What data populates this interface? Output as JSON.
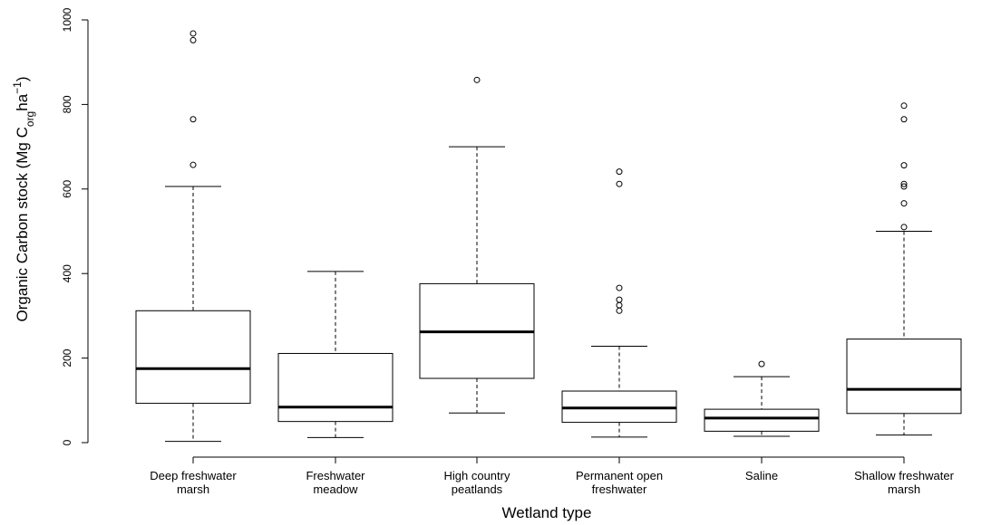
{
  "chart_data": {
    "type": "box",
    "xlabel": "Wetland type",
    "ylabel": {
      "main": "Organic Carbon stock (Mg C",
      "sub": "org",
      "mid": "ha",
      "sup": "−1",
      "end": ")"
    },
    "ylim": [
      0,
      1000
    ],
    "yticks": [
      "0",
      "200",
      "400",
      "600",
      "800",
      "1000"
    ],
    "grid": false,
    "categories": [
      {
        "lines": [
          "Deep freshwater",
          "marsh"
        ]
      },
      {
        "lines": [
          "Freshwater",
          "meadow"
        ]
      },
      {
        "lines": [
          "High country",
          "peatlands"
        ]
      },
      {
        "lines": [
          "Permanent open",
          "freshwater"
        ]
      },
      {
        "lines": [
          "Saline"
        ]
      },
      {
        "lines": [
          "Shallow freshwater",
          "marsh"
        ]
      }
    ],
    "boxes": [
      {
        "whisker_low": 3,
        "q1": 93,
        "median": 175,
        "q3": 312,
        "whisker_high": 606,
        "outliers": [
          657,
          765,
          952,
          968
        ]
      },
      {
        "whisker_low": 12,
        "q1": 50,
        "median": 84,
        "q3": 211,
        "whisker_high": 405,
        "outliers": []
      },
      {
        "whisker_low": 70,
        "q1": 152,
        "median": 262,
        "q3": 376,
        "whisker_high": 700,
        "outliers": [
          858
        ]
      },
      {
        "whisker_low": 13,
        "q1": 48,
        "median": 82,
        "q3": 122,
        "whisker_high": 228,
        "outliers": [
          312,
          325,
          338,
          366,
          612,
          641
        ]
      },
      {
        "whisker_low": 15,
        "q1": 27,
        "median": 58,
        "q3": 79,
        "whisker_high": 156,
        "outliers": [
          186
        ]
      },
      {
        "whisker_low": 18,
        "q1": 69,
        "median": 126,
        "q3": 245,
        "whisker_high": 500,
        "outliers": [
          510,
          566,
          606,
          612,
          656,
          765,
          797
        ]
      }
    ]
  }
}
